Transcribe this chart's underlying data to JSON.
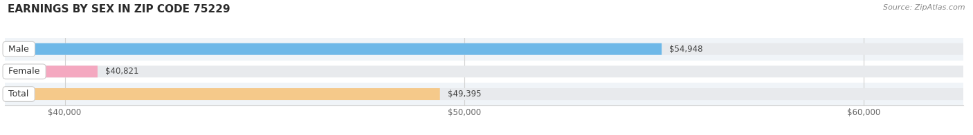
{
  "title": "EARNINGS BY SEX IN ZIP CODE 75229",
  "source": "Source: ZipAtlas.com",
  "categories": [
    "Male",
    "Female",
    "Total"
  ],
  "values": [
    54948,
    40821,
    49395
  ],
  "bar_colors": [
    "#6eb8e8",
    "#f4a8c0",
    "#f5c98a"
  ],
  "bar_bg_color": "#e8eaed",
  "xmin": 38500,
  "xmax": 62500,
  "xticks": [
    40000,
    50000,
    60000
  ],
  "xtick_labels": [
    "$40,000",
    "$50,000",
    "$60,000"
  ],
  "figwidth": 14.06,
  "figheight": 1.96,
  "dpi": 100,
  "title_fontsize": 11,
  "bar_height": 0.52,
  "value_label_fontsize": 8.5,
  "category_label_fontsize": 9,
  "tick_fontsize": 8.5,
  "bg_color": "#ffffff",
  "grid_color": "#d0d0d0",
  "row_bg_colors": [
    "#f0f4f8",
    "#ffffff",
    "#f0f4f8"
  ]
}
